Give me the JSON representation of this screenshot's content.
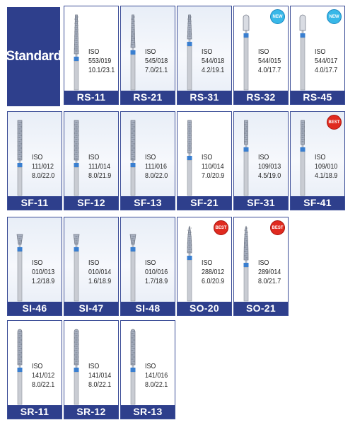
{
  "category": {
    "label": "Standard"
  },
  "colors": {
    "frame": "#2e3f8c",
    "band": "#3a7fd0",
    "shank": "#c9ccd3",
    "diamond": "#a8b0c0",
    "new_badge": "#38b8e8",
    "best_badge": "#e02a1f"
  },
  "rows": [
    {
      "name": "RS",
      "items": [
        {
          "code": "RS-11",
          "iso_label": "ISO",
          "iso": "553/019",
          "size": "10.1/23.1",
          "shape": "taper-long",
          "badge": null,
          "white": true
        },
        {
          "code": "RS-21",
          "iso_label": "ISO",
          "iso": "545/018",
          "size": "7.0/21.1",
          "shape": "taper",
          "badge": null,
          "white": false
        },
        {
          "code": "RS-31",
          "iso_label": "ISO",
          "iso": "544/018",
          "size": "4.2/19.1",
          "shape": "taper-short",
          "badge": null,
          "white": false
        },
        {
          "code": "RS-32",
          "iso_label": "ISO",
          "iso": "544/015",
          "size": "4.0/17.7",
          "shape": "smooth-short",
          "badge": "NEW",
          "white": true
        },
        {
          "code": "RS-45",
          "iso_label": "ISO",
          "iso": "544/017",
          "size": "4.0/17.7",
          "shape": "smooth-short",
          "badge": "NEW",
          "white": true
        }
      ]
    },
    {
      "name": "SF",
      "items": [
        {
          "code": "SF-11",
          "iso_label": "ISO",
          "iso": "111/012",
          "size": "8.0/22.0",
          "shape": "flat-long",
          "badge": null,
          "white": false
        },
        {
          "code": "SF-12",
          "iso_label": "ISO",
          "iso": "111/014",
          "size": "8.0/21.9",
          "shape": "flat-long",
          "badge": null,
          "white": false
        },
        {
          "code": "SF-13",
          "iso_label": "ISO",
          "iso": "111/016",
          "size": "8.0/22.0",
          "shape": "flat-long",
          "badge": null,
          "white": false
        },
        {
          "code": "SF-21",
          "iso_label": "ISO",
          "iso": "110/014",
          "size": "7.0/20.9",
          "shape": "flat",
          "badge": null,
          "white": true
        },
        {
          "code": "SF-31",
          "iso_label": "ISO",
          "iso": "109/013",
          "size": "4.5/19.0",
          "shape": "flat-short",
          "badge": null,
          "white": false
        },
        {
          "code": "SF-41",
          "iso_label": "ISO",
          "iso": "109/010",
          "size": "4.1/18.9",
          "shape": "flat-short",
          "badge": "BEST",
          "white": false
        }
      ]
    },
    {
      "name": "SI",
      "items": [
        {
          "code": "SI-46",
          "iso_label": "ISO",
          "iso": "010/013",
          "size": "1.2/18.9",
          "shape": "inverted",
          "badge": null,
          "white": false
        },
        {
          "code": "SI-47",
          "iso_label": "ISO",
          "iso": "010/014",
          "size": "1.6/18.9",
          "shape": "inverted",
          "badge": null,
          "white": false
        },
        {
          "code": "SI-48",
          "iso_label": "ISO",
          "iso": "010/016",
          "size": "1.7/18.9",
          "shape": "inverted",
          "badge": null,
          "white": false
        },
        {
          "code": "SO-20",
          "iso_label": "ISO",
          "iso": "288/012",
          "size": "6.0/20.9",
          "shape": "ogive",
          "badge": "BEST",
          "white": true
        },
        {
          "code": "SO-21",
          "iso_label": "ISO",
          "iso": "289/014",
          "size": "8.0/21.7",
          "shape": "ogive-long",
          "badge": "BEST",
          "white": true
        }
      ]
    },
    {
      "name": "SR",
      "items": [
        {
          "code": "SR-11",
          "iso_label": "ISO",
          "iso": "141/012",
          "size": "8.0/22.1",
          "shape": "round-long",
          "badge": null,
          "white": true
        },
        {
          "code": "SR-12",
          "iso_label": "ISO",
          "iso": "141/014",
          "size": "8.0/22.1",
          "shape": "round-long",
          "badge": null,
          "white": true
        },
        {
          "code": "SR-13",
          "iso_label": "ISO",
          "iso": "141/016",
          "size": "8.0/22.1",
          "shape": "round-long",
          "badge": null,
          "white": true
        }
      ]
    }
  ]
}
